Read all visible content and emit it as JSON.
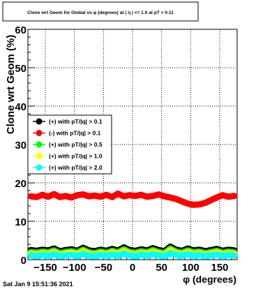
{
  "chart_data": {
    "type": "scatter",
    "title": "Clone wrt Geom for Global vs φ (degrees) at | η | <= 1.0 at pT > 0.11",
    "xlabel": "φ (degrees)",
    "ylabel": "Clone wrt Geom (%)",
    "xlim": [
      -180,
      180
    ],
    "ylim": [
      0,
      60
    ],
    "x_ticks": [
      -150,
      -100,
      -50,
      0,
      50,
      100,
      150
    ],
    "y_ticks": [
      0,
      10,
      20,
      30,
      40,
      50,
      60
    ],
    "grid": true,
    "legend_position": "upper-left inside plot",
    "series": [
      {
        "name": "(+) with pT/|q| > 0.1",
        "color": "#000000",
        "x": [
          -175,
          -165,
          -155,
          -145,
          -135,
          -125,
          -115,
          -105,
          -95,
          -85,
          -75,
          -65,
          -55,
          -45,
          -35,
          -25,
          -15,
          -5,
          5,
          15,
          25,
          35,
          45,
          55,
          65,
          75,
          85,
          95,
          105,
          115,
          125,
          135,
          145,
          155,
          165,
          175
        ],
        "y": [
          2.5,
          2.3,
          2.6,
          2.4,
          2.9,
          2.2,
          2.5,
          2.7,
          2.3,
          3.1,
          2.4,
          2.2,
          2.6,
          2.3,
          2.8,
          2.4,
          3.2,
          2.5,
          2.3,
          2.7,
          2.4,
          3.0,
          2.5,
          2.2,
          3.4,
          2.6,
          2.3,
          2.9,
          2.4,
          2.6,
          2.2,
          2.5,
          2.8,
          2.3,
          2.6,
          2.4
        ]
      },
      {
        "name": "(-) with pT/|q| > 0.1",
        "color": "#ff0000",
        "x": [
          -175,
          -165,
          -155,
          -145,
          -135,
          -125,
          -115,
          -105,
          -95,
          -85,
          -75,
          -65,
          -55,
          -45,
          -35,
          -25,
          -15,
          -5,
          5,
          15,
          25,
          35,
          45,
          55,
          65,
          75,
          85,
          95,
          105,
          115,
          125,
          135,
          145,
          155,
          165,
          175
        ],
        "y": [
          16.5,
          16.3,
          16.9,
          16.4,
          17.1,
          16.3,
          16.6,
          16.2,
          16.8,
          17.0,
          16.5,
          16.7,
          16.4,
          16.9,
          16.3,
          17.2,
          16.5,
          16.8,
          16.6,
          16.9,
          16.4,
          16.6,
          17.0,
          16.5,
          16.2,
          15.8,
          15.2,
          14.6,
          14.3,
          14.4,
          14.8,
          15.5,
          16.2,
          16.8,
          16.4,
          16.6
        ]
      },
      {
        "name": "(+) with pT/|q| > 0.5",
        "color": "#00ff00",
        "x": [
          -175,
          -165,
          -155,
          -145,
          -135,
          -125,
          -115,
          -105,
          -95,
          -85,
          -75,
          -65,
          -55,
          -45,
          -35,
          -25,
          -15,
          -5,
          5,
          15,
          25,
          35,
          45,
          55,
          65,
          75,
          85,
          95,
          105,
          115,
          125,
          135,
          145,
          155,
          165,
          175
        ],
        "y": [
          2.0,
          1.8,
          2.1,
          1.9,
          2.4,
          1.7,
          2.0,
          2.2,
          1.8,
          2.6,
          1.9,
          1.7,
          2.1,
          1.8,
          2.3,
          1.9,
          2.7,
          2.0,
          1.8,
          2.2,
          1.9,
          2.5,
          2.0,
          1.7,
          2.9,
          2.1,
          1.8,
          2.4,
          1.9,
          2.1,
          1.7,
          2.0,
          2.3,
          1.8,
          2.1,
          1.9
        ]
      },
      {
        "name": "(+) with pT/|q| > 1.0",
        "color": "#ffff00",
        "x": [
          -175,
          -165,
          -155,
          -145,
          -135,
          -125,
          -115,
          -105,
          -95,
          -85,
          -75,
          -65,
          -55,
          -45,
          -35,
          -25,
          -15,
          -5,
          5,
          15,
          25,
          35,
          45,
          55,
          65,
          75,
          85,
          95,
          105,
          115,
          125,
          135,
          145,
          155,
          165,
          175
        ],
        "y": [
          1.6,
          1.4,
          1.7,
          1.5,
          2.0,
          1.3,
          1.6,
          1.8,
          1.4,
          2.2,
          1.5,
          1.3,
          1.7,
          1.4,
          1.9,
          1.5,
          2.3,
          1.6,
          1.4,
          1.8,
          1.5,
          2.1,
          1.6,
          1.3,
          2.5,
          1.7,
          1.4,
          2.0,
          1.5,
          1.7,
          1.3,
          1.6,
          1.9,
          1.4,
          1.7,
          1.5
        ]
      },
      {
        "name": "(+) with pT/|q| > 2.0",
        "color": "#00ffff",
        "x": [
          -175,
          -165,
          -155,
          -145,
          -135,
          -125,
          -115,
          -105,
          -95,
          -85,
          -75,
          -65,
          -55,
          -45,
          -35,
          -25,
          -15,
          -5,
          5,
          15,
          25,
          35,
          45,
          55,
          65,
          75,
          85,
          95,
          105,
          115,
          125,
          135,
          145,
          155,
          165,
          175
        ],
        "y": [
          1.1,
          0.9,
          1.2,
          1.0,
          1.4,
          0.9,
          1.1,
          1.3,
          0.9,
          1.5,
          1.0,
          0.9,
          1.2,
          1.0,
          1.3,
          1.0,
          1.6,
          1.1,
          0.9,
          1.3,
          1.0,
          1.4,
          1.1,
          0.9,
          1.7,
          1.2,
          1.0,
          1.4,
          1.0,
          1.2,
          0.9,
          1.1,
          1.3,
          1.0,
          1.2,
          1.0
        ]
      }
    ]
  },
  "footer": {
    "timestamp": "Sat Jan  9 15:51:36 2021"
  }
}
